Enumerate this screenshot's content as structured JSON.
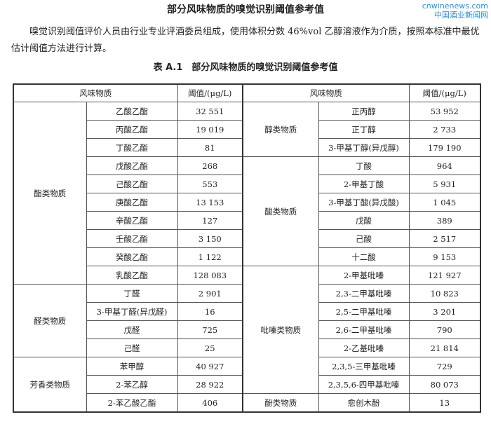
{
  "doc_title": "部分风味物质的嗅觉识别阈值参考值",
  "paragraph": "嗅觉识别阈值评价人员由行业专业评酒委员组成，使用体积分数 46%vol 乙醇溶液作为介质，按照本标准中最优估计阈值方法进行计算。",
  "table_caption": "表 A.1　部分风味物质的嗅觉识别阈值参考值",
  "headers": {
    "substance": "风味物质",
    "threshold": "阈值/(μg/L)"
  },
  "left_groups": [
    {
      "category": "酯类物质",
      "items": [
        [
          "乙酸乙酯",
          "32 551"
        ],
        [
          "丙酸乙酯",
          "19 019"
        ],
        [
          "丁酸乙酯",
          "81"
        ],
        [
          "戊酸乙酯",
          "268"
        ],
        [
          "己酸乙酯",
          "553"
        ],
        [
          "庚酸乙酯",
          "13 153"
        ],
        [
          "辛酸乙酯",
          "127"
        ],
        [
          "壬酸乙酯",
          "3 150"
        ],
        [
          "癸酸乙酯",
          "1 122"
        ],
        [
          "乳酸乙酯",
          "128 083"
        ]
      ]
    },
    {
      "category": "醛类物质",
      "items": [
        [
          "丁醛",
          "2 901"
        ],
        [
          "3-甲基丁醛(异戊醛)",
          "16"
        ],
        [
          "戊醛",
          "725"
        ],
        [
          "己醛",
          "25"
        ]
      ]
    },
    {
      "category": "芳香类物质",
      "items": [
        [
          "苯甲醇",
          "40 927"
        ],
        [
          "2-苯乙醇",
          "28 922"
        ],
        [
          "2-苯乙酸乙酯",
          "406"
        ]
      ]
    }
  ],
  "right_groups": [
    {
      "category": "醇类物质",
      "items": [
        [
          "正丙醇",
          "53 952"
        ],
        [
          "正丁醇",
          "2 733"
        ],
        [
          "3-甲基丁醇(异戊醇)",
          "179 190"
        ]
      ]
    },
    {
      "category": "酸类物质",
      "items": [
        [
          "丁酸",
          "964"
        ],
        [
          "2-甲基丁酸",
          "5 931"
        ],
        [
          "3-甲基丁酸(异戊酸)",
          "1 045"
        ],
        [
          "戊酸",
          "389"
        ],
        [
          "己酸",
          "2 517"
        ],
        [
          "十二酸",
          "9 153"
        ]
      ]
    },
    {
      "category": "吡嗪类物质",
      "items": [
        [
          "2-甲基吡嗪",
          "121 927"
        ],
        [
          "2,3-二甲基吡嗪",
          "10 823"
        ],
        [
          "2,5-二甲基吡嗪",
          "3 201"
        ],
        [
          "2,6-二甲基吡嗪",
          "790"
        ],
        [
          "2-乙基吡嗪",
          "21 814"
        ],
        [
          "2,3,5-三甲基吡嗪",
          "729"
        ],
        [
          "2,3,5,6-四甲基吡嗪",
          "80 073"
        ]
      ]
    },
    {
      "category": "酚类物质",
      "items": [
        [
          "愈创木酚",
          "13"
        ]
      ]
    }
  ],
  "watermark": {
    "en": "cnwinenews.com",
    "zh": "中国酒业新闻网"
  }
}
